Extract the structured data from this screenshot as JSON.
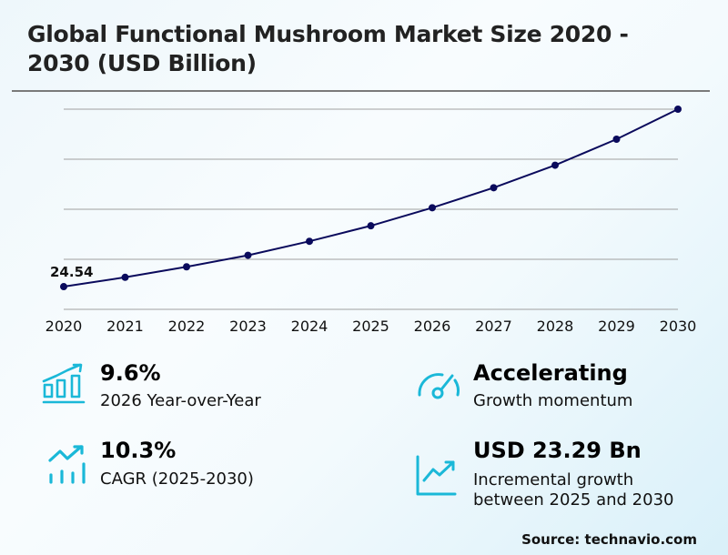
{
  "title": "Global Functional Mushroom Market Size 2020 - 2030 (USD Billion)",
  "title_line1": "Global Functional Mushroom Market Size 2020 -",
  "title_line2": "2030 (USD Billion)",
  "colors": {
    "line": "#0a0a5c",
    "icon": "#1ab8d8",
    "grid": "#a0a0a0"
  },
  "chart_data": {
    "type": "line",
    "title": "Global Functional Mushroom Market Size 2020 - 2030 (USD Billion)",
    "xlabel": "",
    "ylabel": "USD Billion",
    "categories": [
      "2020",
      "2021",
      "2022",
      "2023",
      "2024",
      "2025",
      "2026",
      "2027",
      "2028",
      "2029",
      "2030"
    ],
    "series": [
      {
        "name": "Market Size",
        "values": [
          24.54,
          26.4,
          28.5,
          30.8,
          33.6,
          36.7,
          40.3,
          44.3,
          48.8,
          54.0,
          60.0
        ]
      }
    ],
    "annotations": [
      {
        "x": "2020",
        "text": "24.54"
      }
    ],
    "ylim": [
      20,
      60
    ],
    "gridlines": [
      20,
      30,
      40,
      50,
      60
    ],
    "grid": true,
    "legend": "none"
  },
  "kpis": [
    {
      "value": "9.6%",
      "label": "2026 Year-over-Year",
      "icon": "bar-chart-growth-icon"
    },
    {
      "value": "Accelerating",
      "label": "Growth momentum",
      "icon": "speedometer-icon"
    },
    {
      "value": "10.3%",
      "label": "CAGR (2025-2030)",
      "icon": "trend-bars-icon"
    },
    {
      "value": "USD 23.29 Bn",
      "label_line1": "Incremental growth",
      "label_line2": "between 2025 and 2030",
      "icon": "line-chart-up-icon"
    }
  ],
  "source": "Source: technavio.com"
}
